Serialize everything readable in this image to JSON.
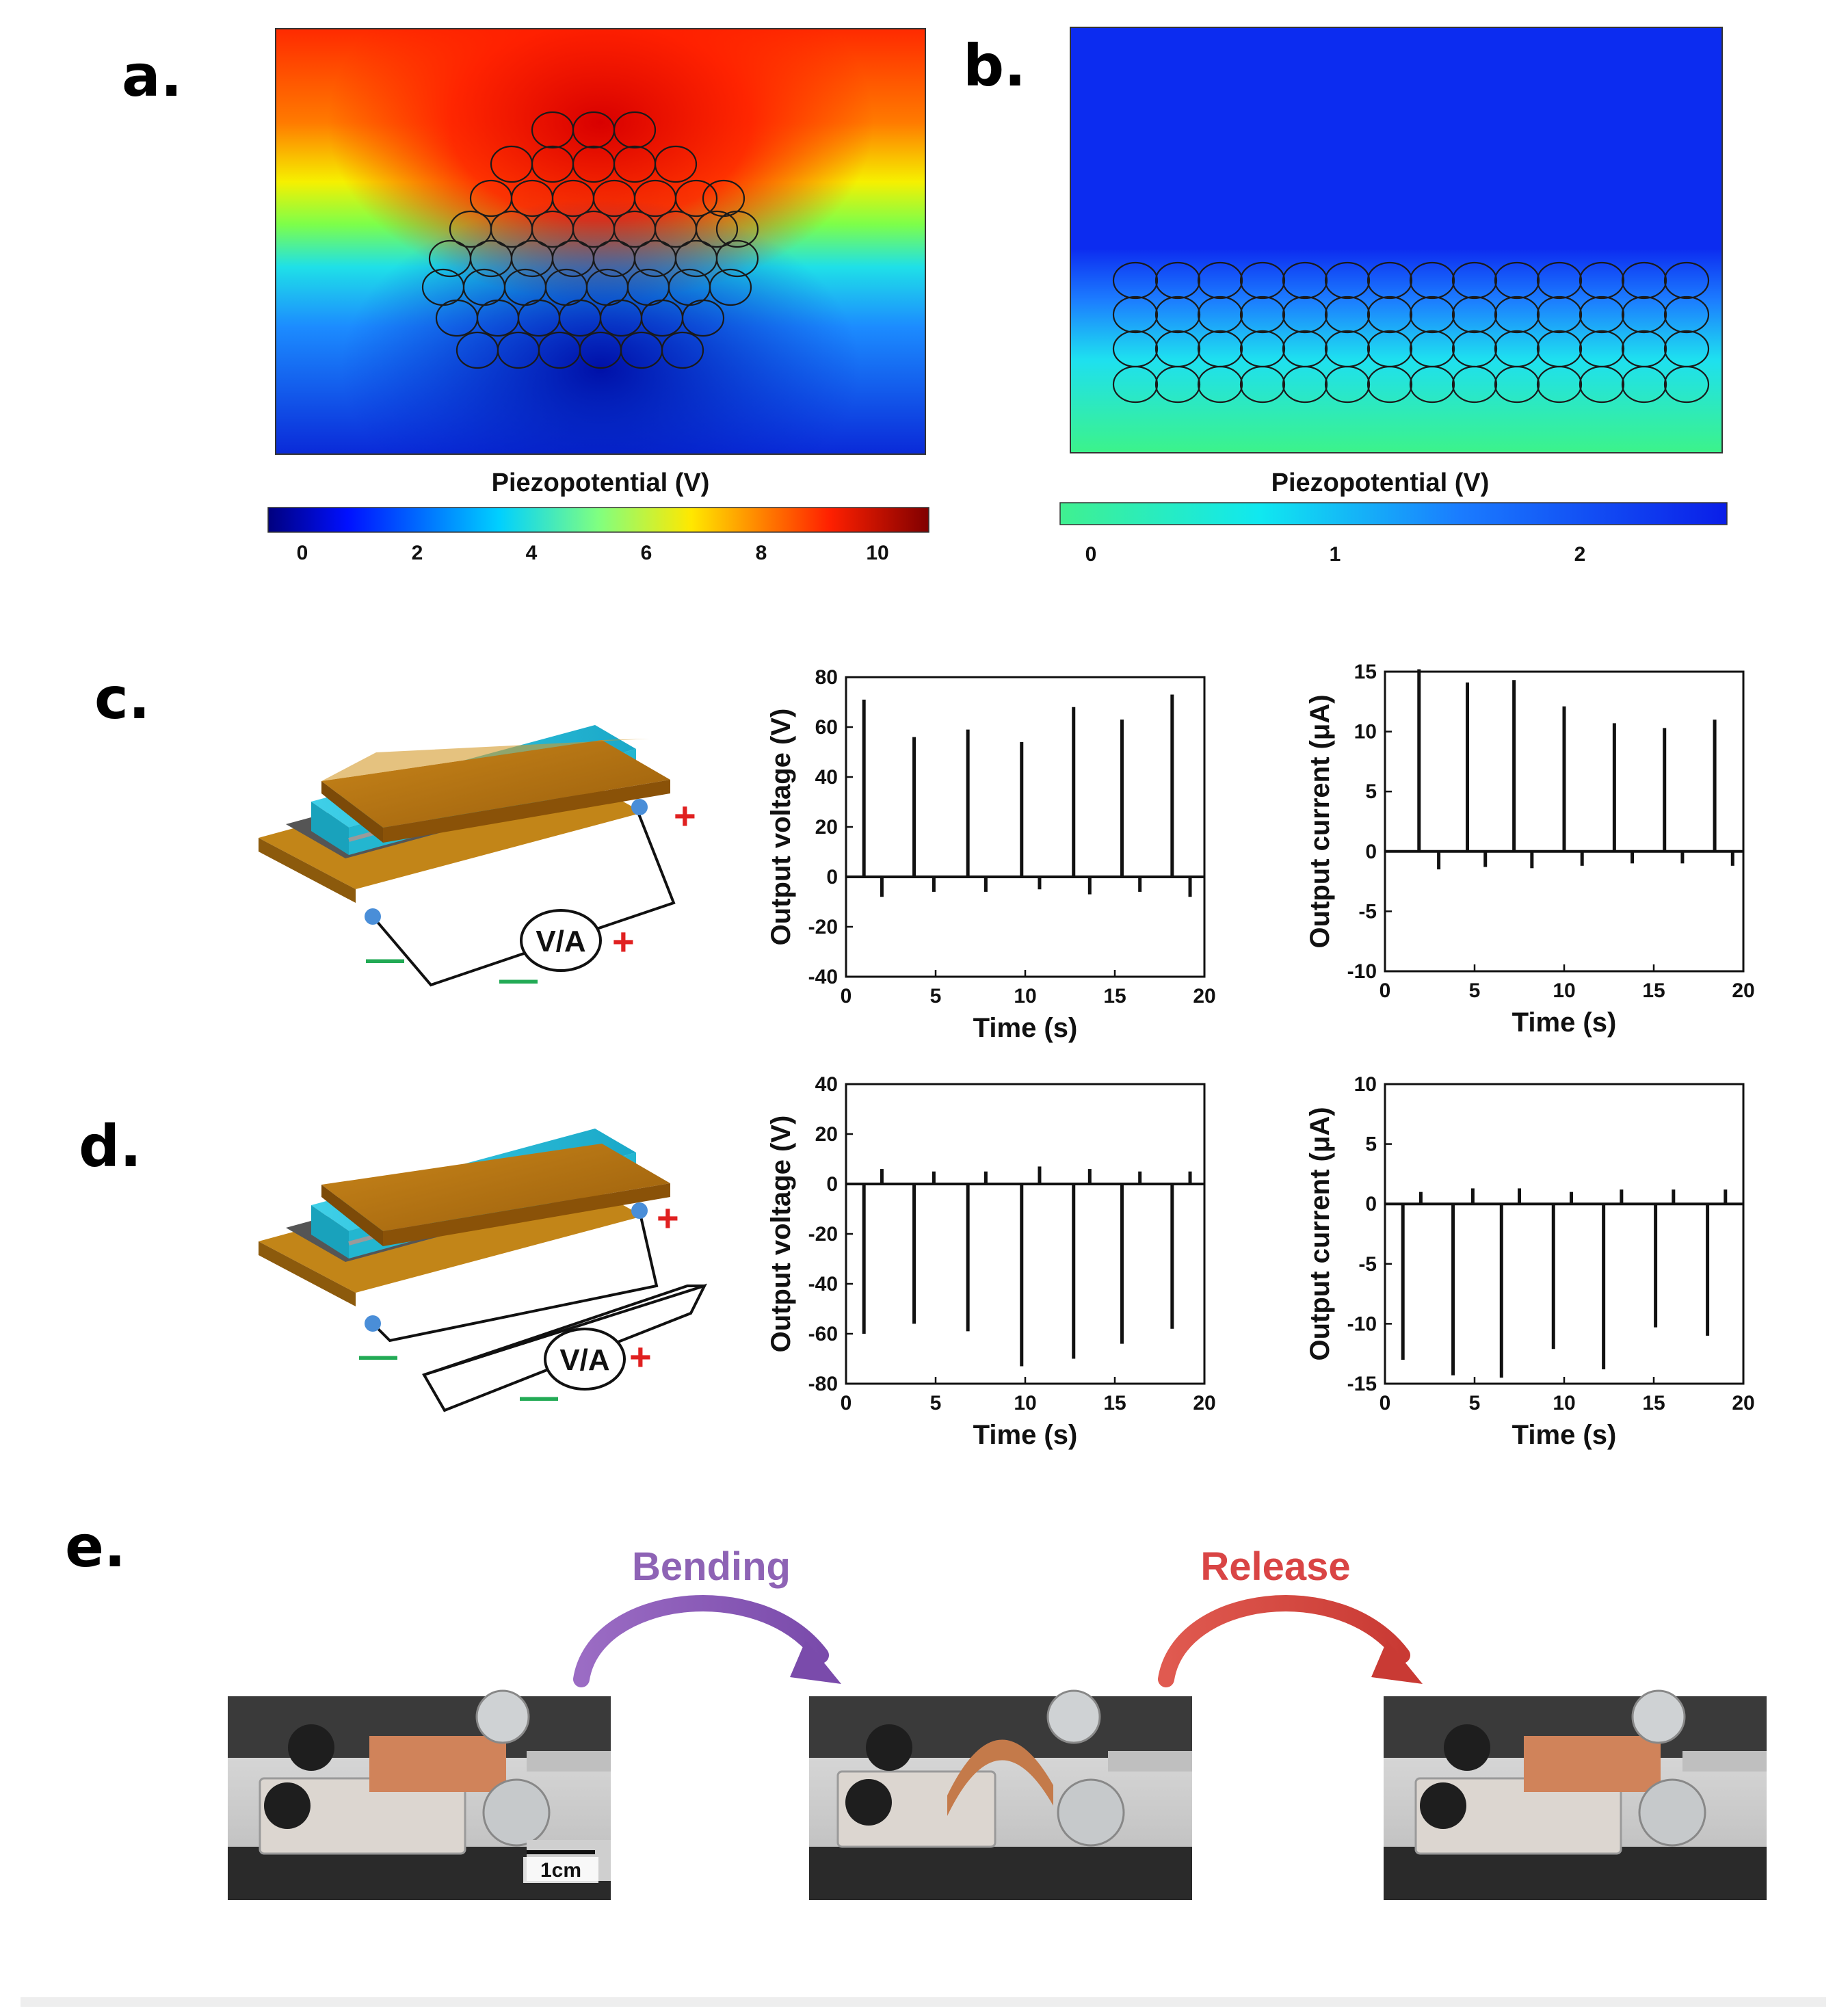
{
  "panels": {
    "a": {
      "letter": "a.",
      "colorbar_title": "Piezopotential (V)",
      "ticks": [
        "0",
        "2",
        "4",
        "6",
        "8",
        "10"
      ]
    },
    "b": {
      "letter": "b.",
      "colorbar_title": "Piezopotential (V)",
      "ticks": [
        "0",
        "1",
        "2"
      ]
    },
    "c": {
      "letter": "c."
    },
    "d": {
      "letter": "d."
    },
    "e": {
      "letter": "e.",
      "bending_label": "Bending",
      "release_label": "Release",
      "scale_bar": "1cm",
      "bending_color": "#8e63b5",
      "release_color": "#d94545"
    }
  },
  "device": {
    "meter_label": "V/A",
    "plus": "+",
    "minus": "—",
    "plus_color": "#e02020",
    "minus_color": "#22aa55"
  },
  "chart_data": [
    {
      "id": "c-voltage",
      "type": "line",
      "xlabel": "Time (s)",
      "ylabel": "Output voltage (V)",
      "xlim": [
        0,
        20
      ],
      "ylim": [
        -40,
        80
      ],
      "xticks": [
        0,
        5,
        10,
        15,
        20
      ],
      "yticks": [
        -40,
        -20,
        0,
        20,
        40,
        60,
        80
      ],
      "spikes": [
        {
          "t": 1.0,
          "v": 71
        },
        {
          "t": 2.0,
          "v": -8
        },
        {
          "t": 3.8,
          "v": 56
        },
        {
          "t": 4.9,
          "v": -6
        },
        {
          "t": 6.8,
          "v": 59
        },
        {
          "t": 7.8,
          "v": -6
        },
        {
          "t": 9.8,
          "v": 54
        },
        {
          "t": 10.8,
          "v": -5
        },
        {
          "t": 12.7,
          "v": 68
        },
        {
          "t": 13.6,
          "v": -7
        },
        {
          "t": 15.4,
          "v": 63
        },
        {
          "t": 16.4,
          "v": -6
        },
        {
          "t": 18.2,
          "v": 73
        },
        {
          "t": 19.2,
          "v": -8
        }
      ]
    },
    {
      "id": "c-current",
      "type": "line",
      "xlabel": "Time (s)",
      "ylabel": "Output current (μA)",
      "xlim": [
        0,
        20
      ],
      "ylim": [
        -10,
        15
      ],
      "xticks": [
        0,
        5,
        10,
        15,
        20
      ],
      "yticks": [
        -10,
        -5,
        0,
        5,
        10,
        15
      ],
      "spikes": [
        {
          "t": 1.9,
          "v": 15.2
        },
        {
          "t": 3.0,
          "v": -1.5
        },
        {
          "t": 4.6,
          "v": 14.1
        },
        {
          "t": 5.6,
          "v": -1.3
        },
        {
          "t": 7.2,
          "v": 14.3
        },
        {
          "t": 8.2,
          "v": -1.4
        },
        {
          "t": 10.0,
          "v": 12.1
        },
        {
          "t": 11.0,
          "v": -1.2
        },
        {
          "t": 12.8,
          "v": 10.7
        },
        {
          "t": 13.8,
          "v": -1.0
        },
        {
          "t": 15.6,
          "v": 10.3
        },
        {
          "t": 16.6,
          "v": -1.0
        },
        {
          "t": 18.4,
          "v": 11.0
        },
        {
          "t": 19.4,
          "v": -1.2
        }
      ]
    },
    {
      "id": "d-voltage",
      "type": "line",
      "xlabel": "Time (s)",
      "ylabel": "Output voltage (V)",
      "xlim": [
        0,
        20
      ],
      "ylim": [
        -80,
        40
      ],
      "xticks": [
        0,
        5,
        10,
        15,
        20
      ],
      "yticks": [
        -80,
        -60,
        -40,
        -20,
        0,
        20,
        40
      ],
      "spikes": [
        {
          "t": 1.0,
          "v": -60
        },
        {
          "t": 2.0,
          "v": 6
        },
        {
          "t": 3.8,
          "v": -56
        },
        {
          "t": 4.9,
          "v": 5
        },
        {
          "t": 6.8,
          "v": -59
        },
        {
          "t": 7.8,
          "v": 5
        },
        {
          "t": 9.8,
          "v": -73
        },
        {
          "t": 10.8,
          "v": 7
        },
        {
          "t": 12.7,
          "v": -70
        },
        {
          "t": 13.6,
          "v": 6
        },
        {
          "t": 15.4,
          "v": -64
        },
        {
          "t": 16.4,
          "v": 5
        },
        {
          "t": 18.2,
          "v": -58
        },
        {
          "t": 19.2,
          "v": 5
        }
      ]
    },
    {
      "id": "d-current",
      "type": "line",
      "xlabel": "Time (s)",
      "ylabel": "Output current (μA)",
      "xlim": [
        0,
        20
      ],
      "ylim": [
        -15,
        10
      ],
      "xticks": [
        0,
        5,
        10,
        15,
        20
      ],
      "yticks": [
        -15,
        -10,
        -5,
        0,
        5,
        10
      ],
      "spikes": [
        {
          "t": 1.0,
          "v": -13.0
        },
        {
          "t": 2.0,
          "v": 1.0
        },
        {
          "t": 3.8,
          "v": -14.3
        },
        {
          "t": 4.9,
          "v": 1.3
        },
        {
          "t": 6.5,
          "v": -14.5
        },
        {
          "t": 7.5,
          "v": 1.3
        },
        {
          "t": 9.4,
          "v": -12.1
        },
        {
          "t": 10.4,
          "v": 1.0
        },
        {
          "t": 12.2,
          "v": -13.8
        },
        {
          "t": 13.2,
          "v": 1.2
        },
        {
          "t": 15.1,
          "v": -10.3
        },
        {
          "t": 16.1,
          "v": 1.2
        },
        {
          "t": 18.0,
          "v": -11.0
        },
        {
          "t": 19.0,
          "v": 1.2
        }
      ]
    }
  ]
}
